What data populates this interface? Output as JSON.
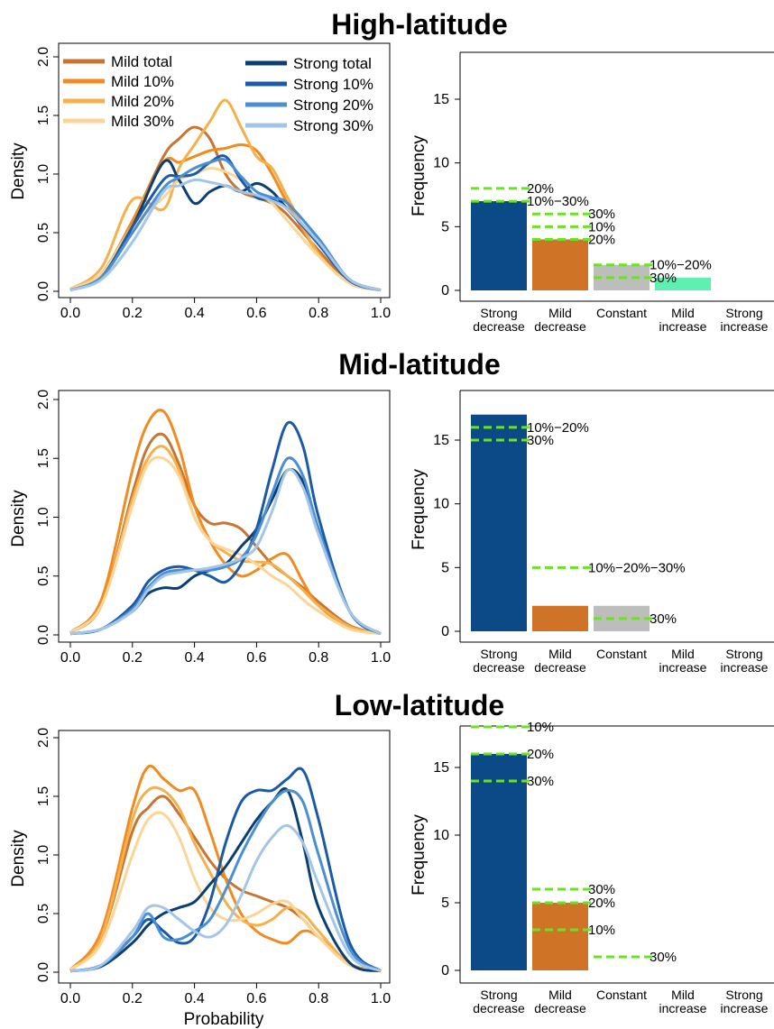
{
  "figure": {
    "density_ylabel": "Density",
    "freq_ylabel": "Frequency",
    "xlabel_bottom": "Probability"
  },
  "legend": [
    {
      "label": "Mild total",
      "color": "#c87533"
    },
    {
      "label": "Mild 10%",
      "color": "#f18a1f"
    },
    {
      "label": "Mild 20%",
      "color": "#f5b04c"
    },
    {
      "label": "Mild 30%",
      "color": "#fbd597"
    },
    {
      "label": "Strong total",
      "color": "#0b3f73"
    },
    {
      "label": "Strong 10%",
      "color": "#1b5aa6"
    },
    {
      "label": "Strong 20%",
      "color": "#4a8fd3"
    },
    {
      "label": "Strong 30%",
      "color": "#a3c5e8"
    }
  ],
  "chart_data": [
    {
      "panel": "High-latitude",
      "title": "High-latitude",
      "density": {
        "type": "line",
        "xlim": [
          0,
          1
        ],
        "ylim": [
          0,
          2
        ],
        "xticks": [
          "0.0",
          "0.2",
          "0.4",
          "0.6",
          "0.8",
          "1.0"
        ],
        "yticks": [
          "0.0",
          "0.5",
          "1.0",
          "1.5",
          "2.0"
        ],
        "x": [
          0.0,
          0.1,
          0.2,
          0.3,
          0.35,
          0.4,
          0.45,
          0.5,
          0.55,
          0.6,
          0.65,
          0.7,
          0.8,
          0.9,
          1.0
        ],
        "series": [
          {
            "name": "Mild total",
            "color": "#c87533",
            "values": [
              0.02,
              0.15,
              0.6,
              1.15,
              1.3,
              1.4,
              1.3,
              1.0,
              0.85,
              0.8,
              0.75,
              0.65,
              0.35,
              0.08,
              0.01
            ]
          },
          {
            "name": "Mild 10%",
            "color": "#f18a1f",
            "values": [
              0.02,
              0.15,
              0.6,
              1.1,
              1.1,
              1.15,
              1.2,
              1.22,
              1.25,
              1.2,
              1.0,
              0.75,
              0.32,
              0.07,
              0.01
            ]
          },
          {
            "name": "Mild 20%",
            "color": "#f5b04c",
            "values": [
              0.02,
              0.2,
              0.78,
              0.7,
              1.05,
              1.25,
              1.45,
              1.63,
              1.4,
              1.15,
              1.05,
              0.8,
              0.32,
              0.07,
              0.01
            ]
          },
          {
            "name": "Mild 30%",
            "color": "#fbd597",
            "values": [
              0.02,
              0.15,
              0.55,
              0.8,
              0.95,
              1.0,
              1.05,
              1.02,
              0.95,
              0.85,
              0.75,
              0.6,
              0.3,
              0.07,
              0.01
            ]
          },
          {
            "name": "Strong total",
            "color": "#0b3f73",
            "values": [
              0.01,
              0.12,
              0.55,
              1.1,
              0.95,
              0.75,
              0.85,
              0.9,
              0.85,
              0.92,
              0.85,
              0.7,
              0.42,
              0.1,
              0.01
            ]
          },
          {
            "name": "Strong 10%",
            "color": "#1b5aa6",
            "values": [
              0.01,
              0.12,
              0.55,
              0.95,
              0.98,
              1.0,
              1.1,
              1.15,
              0.95,
              0.8,
              0.78,
              0.7,
              0.4,
              0.09,
              0.01
            ]
          },
          {
            "name": "Strong 20%",
            "color": "#4a8fd3",
            "values": [
              0.01,
              0.12,
              0.5,
              0.88,
              0.97,
              1.05,
              1.1,
              1.12,
              0.98,
              0.85,
              0.8,
              0.75,
              0.45,
              0.1,
              0.01
            ]
          },
          {
            "name": "Strong 30%",
            "color": "#a3c5e8",
            "values": [
              0.01,
              0.1,
              0.42,
              0.85,
              0.9,
              0.95,
              0.93,
              0.9,
              0.85,
              0.82,
              0.77,
              0.7,
              0.42,
              0.1,
              0.01
            ]
          }
        ]
      },
      "frequency": {
        "type": "bar",
        "categories": [
          "Strong\ndecrease",
          "Mild\ndecrease",
          "Constant",
          "Mild\nincrease",
          "Strong\nincrease"
        ],
        "ylim": [
          0,
          18
        ],
        "yticks": [
          "0",
          "5",
          "10",
          "15"
        ],
        "values": [
          7,
          4,
          2,
          1,
          0
        ],
        "colors": [
          "#0b4a86",
          "#cf7327",
          "#bdbdbd",
          "#5ef0b0",
          "#ffffff"
        ],
        "markers": [
          {
            "category": 0,
            "levels": [
              {
                "y": 8,
                "label": "20%"
              },
              {
                "y": 7,
                "label": "10%−30%"
              }
            ]
          },
          {
            "category": 1,
            "levels": [
              {
                "y": 6,
                "label": "30%"
              },
              {
                "y": 5,
                "label": "10%"
              },
              {
                "y": 4,
                "label": "20%"
              }
            ]
          },
          {
            "category": 2,
            "levels": [
              {
                "y": 2,
                "label": "10%−20%"
              },
              {
                "y": 1,
                "label": "30%"
              }
            ]
          }
        ]
      }
    },
    {
      "panel": "Mid-latitude",
      "title": "Mid-latitude",
      "density": {
        "type": "line",
        "xlim": [
          0,
          1
        ],
        "ylim": [
          0,
          2
        ],
        "xticks": [
          "0.0",
          "0.2",
          "0.4",
          "0.6",
          "0.8",
          "1.0"
        ],
        "yticks": [
          "0.0",
          "0.5",
          "1.0",
          "1.5",
          "2.0"
        ],
        "x": [
          0.0,
          0.1,
          0.2,
          0.25,
          0.3,
          0.35,
          0.4,
          0.45,
          0.5,
          0.55,
          0.6,
          0.65,
          0.7,
          0.75,
          0.8,
          0.9,
          1.0
        ],
        "series": [
          {
            "name": "Mild total",
            "color": "#c87533",
            "values": [
              0.02,
              0.25,
              1.2,
              1.6,
              1.7,
              1.45,
              1.1,
              0.95,
              0.95,
              0.9,
              0.75,
              0.6,
              0.5,
              0.4,
              0.28,
              0.08,
              0.01
            ]
          },
          {
            "name": "Mild 10%",
            "color": "#f18a1f",
            "values": [
              0.02,
              0.3,
              1.4,
              1.8,
              1.9,
              1.6,
              1.1,
              0.8,
              0.6,
              0.5,
              0.55,
              0.65,
              0.68,
              0.45,
              0.25,
              0.06,
              0.01
            ]
          },
          {
            "name": "Mild 20%",
            "color": "#f5b04c",
            "values": [
              0.02,
              0.25,
              1.15,
              1.5,
              1.6,
              1.4,
              1.0,
              0.8,
              0.7,
              0.63,
              0.62,
              0.6,
              0.5,
              0.38,
              0.25,
              0.07,
              0.01
            ]
          },
          {
            "name": "Mild 30%",
            "color": "#fbd597",
            "values": [
              0.02,
              0.25,
              1.1,
              1.45,
              1.5,
              1.35,
              1.0,
              0.8,
              0.73,
              0.68,
              0.6,
              0.5,
              0.42,
              0.3,
              0.2,
              0.05,
              0.01
            ]
          },
          {
            "name": "Strong total",
            "color": "#0b3f73",
            "values": [
              0.01,
              0.05,
              0.2,
              0.35,
              0.4,
              0.4,
              0.5,
              0.55,
              0.6,
              0.75,
              0.9,
              1.15,
              1.4,
              1.3,
              0.9,
              0.2,
              0.01
            ]
          },
          {
            "name": "Strong 10%",
            "color": "#1b5aa6",
            "values": [
              0.01,
              0.05,
              0.25,
              0.45,
              0.55,
              0.58,
              0.55,
              0.5,
              0.45,
              0.6,
              0.9,
              1.4,
              1.8,
              1.6,
              1.0,
              0.2,
              0.01
            ]
          },
          {
            "name": "Strong 20%",
            "color": "#4a8fd3",
            "values": [
              0.01,
              0.05,
              0.22,
              0.4,
              0.52,
              0.55,
              0.55,
              0.55,
              0.58,
              0.65,
              0.85,
              1.2,
              1.5,
              1.35,
              0.9,
              0.2,
              0.01
            ]
          },
          {
            "name": "Strong 30%",
            "color": "#a3c5e8",
            "values": [
              0.01,
              0.05,
              0.2,
              0.38,
              0.5,
              0.53,
              0.55,
              0.57,
              0.6,
              0.65,
              0.75,
              1.05,
              1.4,
              1.25,
              0.85,
              0.2,
              0.01
            ]
          }
        ]
      },
      "frequency": {
        "type": "bar",
        "categories": [
          "Strong\ndecrease",
          "Mild\ndecrease",
          "Constant",
          "Mild\nincrease",
          "Strong\nincrease"
        ],
        "ylim": [
          0,
          18
        ],
        "yticks": [
          "0",
          "5",
          "10",
          "15"
        ],
        "values": [
          17,
          2,
          2,
          0,
          0
        ],
        "colors": [
          "#0b4a86",
          "#cf7327",
          "#bdbdbd",
          "#5ef0b0",
          "#ffffff"
        ],
        "markers": [
          {
            "category": 0,
            "levels": [
              {
                "y": 16,
                "label": "10%−20%"
              },
              {
                "y": 15,
                "label": "30%"
              }
            ]
          },
          {
            "category": 1,
            "levels": [
              {
                "y": 5,
                "label": "10%−20%−30%"
              }
            ]
          },
          {
            "category": 2,
            "levels": [
              {
                "y": 1,
                "label": "30%"
              }
            ]
          }
        ]
      }
    },
    {
      "panel": "Low-latitude",
      "title": "Low-latitude",
      "density": {
        "type": "line",
        "xlim": [
          0,
          1
        ],
        "ylim": [
          0,
          2
        ],
        "xticks": [
          "0.0",
          "0.2",
          "0.4",
          "0.6",
          "0.8",
          "1.0"
        ],
        "yticks": [
          "0.0",
          "0.5",
          "1.0",
          "1.5",
          "2.0"
        ],
        "x": [
          0.0,
          0.1,
          0.2,
          0.25,
          0.3,
          0.35,
          0.4,
          0.45,
          0.5,
          0.55,
          0.6,
          0.65,
          0.7,
          0.75,
          0.8,
          0.9,
          1.0
        ],
        "series": [
          {
            "name": "Mild total",
            "color": "#c87533",
            "values": [
              0.02,
              0.3,
              1.2,
              1.4,
              1.5,
              1.35,
              1.15,
              0.95,
              0.8,
              0.7,
              0.65,
              0.6,
              0.55,
              0.45,
              0.3,
              0.07,
              0.01
            ]
          },
          {
            "name": "Mild 10%",
            "color": "#f18a1f",
            "values": [
              0.02,
              0.35,
              1.4,
              1.75,
              1.65,
              1.55,
              1.55,
              1.2,
              0.8,
              0.5,
              0.35,
              0.28,
              0.25,
              0.35,
              0.3,
              0.06,
              0.01
            ]
          },
          {
            "name": "Mild 20%",
            "color": "#f5b04c",
            "values": [
              0.02,
              0.3,
              1.3,
              1.55,
              1.55,
              1.4,
              1.1,
              0.85,
              0.6,
              0.45,
              0.4,
              0.45,
              0.55,
              0.5,
              0.35,
              0.07,
              0.01
            ]
          },
          {
            "name": "Mild 30%",
            "color": "#fbd597",
            "values": [
              0.02,
              0.25,
              1.0,
              1.3,
              1.35,
              1.15,
              0.8,
              0.55,
              0.45,
              0.45,
              0.5,
              0.58,
              0.6,
              0.45,
              0.3,
              0.06,
              0.01
            ]
          },
          {
            "name": "Strong total",
            "color": "#0b3f73",
            "values": [
              0.01,
              0.05,
              0.25,
              0.4,
              0.5,
              0.55,
              0.6,
              0.75,
              0.9,
              1.1,
              1.3,
              1.45,
              1.55,
              1.1,
              0.55,
              0.08,
              0.01
            ]
          },
          {
            "name": "Strong 10%",
            "color": "#1b5aa6",
            "values": [
              0.01,
              0.06,
              0.3,
              0.45,
              0.35,
              0.25,
              0.3,
              0.6,
              1.1,
              1.45,
              1.55,
              1.55,
              1.65,
              1.72,
              1.3,
              0.25,
              0.01
            ]
          },
          {
            "name": "Strong 20%",
            "color": "#4a8fd3",
            "values": [
              0.01,
              0.06,
              0.3,
              0.5,
              0.3,
              0.28,
              0.35,
              0.45,
              0.7,
              1.0,
              1.25,
              1.45,
              1.55,
              1.45,
              1.0,
              0.2,
              0.01
            ]
          },
          {
            "name": "Strong 30%",
            "color": "#a3c5e8",
            "values": [
              0.01,
              0.06,
              0.35,
              0.55,
              0.55,
              0.45,
              0.35,
              0.3,
              0.4,
              0.65,
              0.95,
              1.15,
              1.25,
              1.1,
              0.75,
              0.15,
              0.01
            ]
          }
        ]
      },
      "frequency": {
        "type": "bar",
        "categories": [
          "Strong\ndecrease",
          "Mild\ndecrease",
          "Constant",
          "Mild\nincrease",
          "Strong\nincrease"
        ],
        "ylim": [
          0,
          18
        ],
        "yticks": [
          "0",
          "5",
          "10",
          "15"
        ],
        "values": [
          16,
          5,
          0,
          0,
          0
        ],
        "colors": [
          "#0b4a86",
          "#cf7327",
          "#bdbdbd",
          "#5ef0b0",
          "#ffffff"
        ],
        "markers": [
          {
            "category": 0,
            "levels": [
              {
                "y": 18,
                "label": "10%"
              },
              {
                "y": 16,
                "label": "20%"
              },
              {
                "y": 14,
                "label": "30%"
              }
            ]
          },
          {
            "category": 1,
            "levels": [
              {
                "y": 6,
                "label": "30%"
              },
              {
                "y": 5,
                "label": "20%"
              },
              {
                "y": 3,
                "label": "10%"
              }
            ]
          },
          {
            "category": 2,
            "levels": [
              {
                "y": 1,
                "label": "30%"
              }
            ]
          }
        ]
      }
    }
  ]
}
